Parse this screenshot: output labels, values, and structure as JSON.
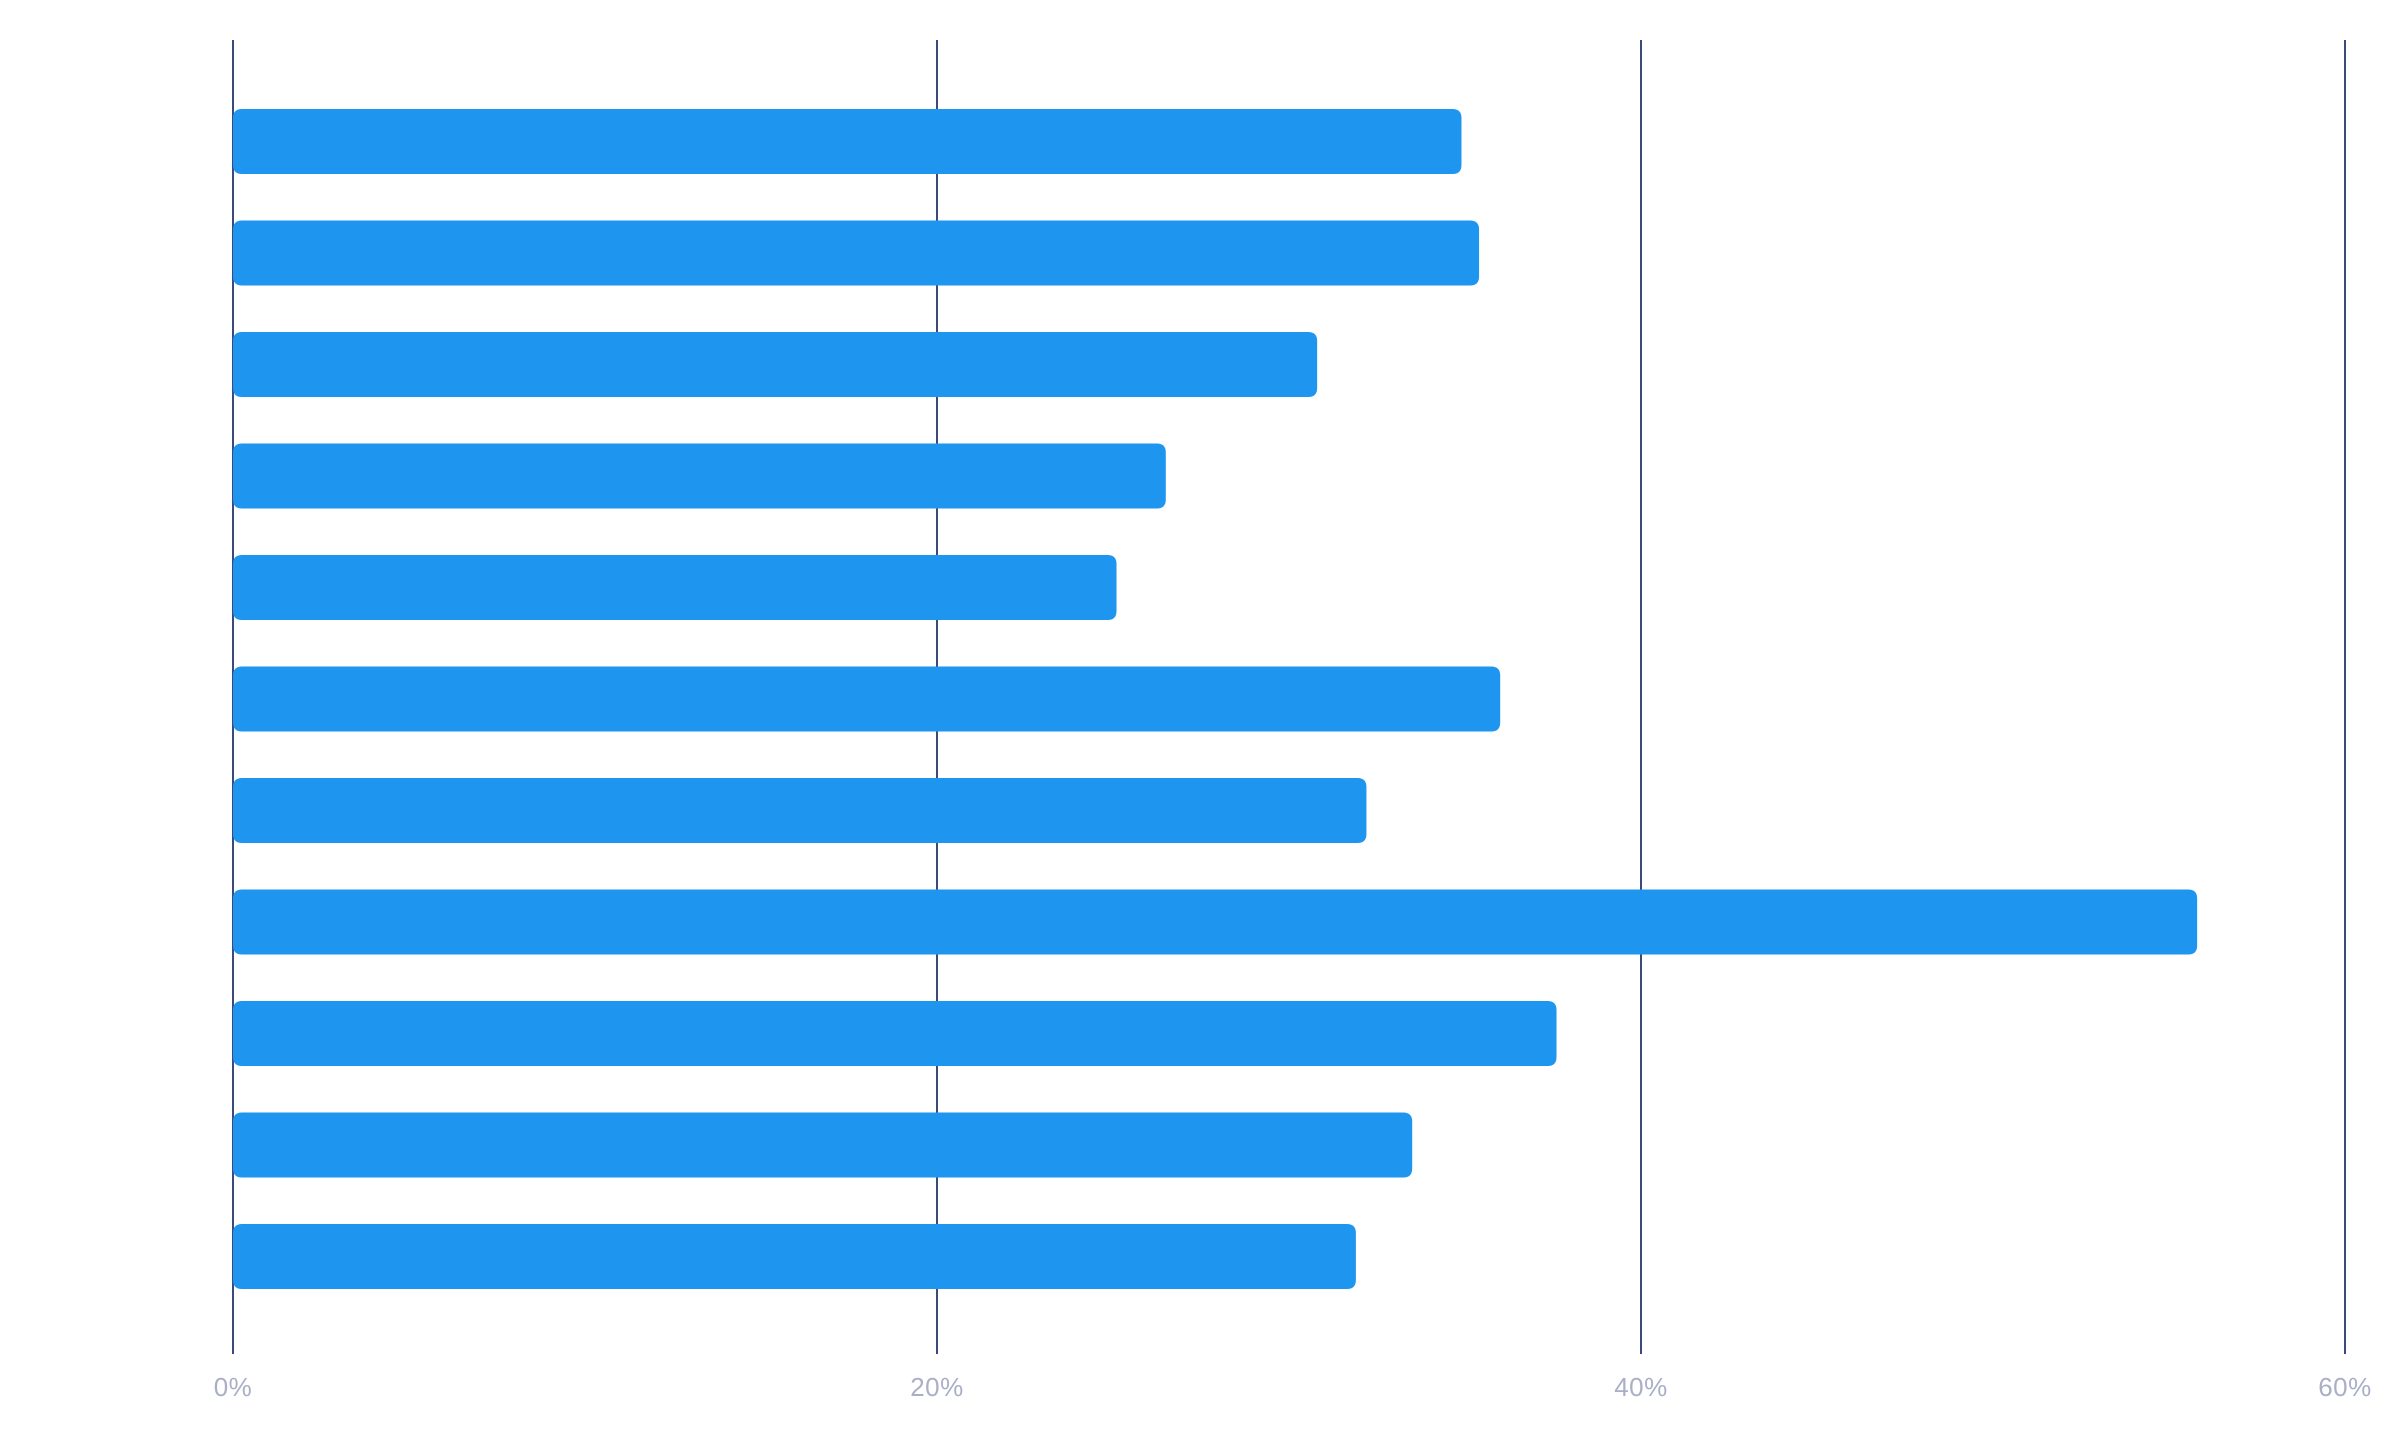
{
  "chart_data": {
    "type": "bar",
    "orientation": "horizontal",
    "title": "",
    "xlabel": "",
    "ylabel": "",
    "xlim": [
      0,
      60
    ],
    "x_ticks": [
      0,
      20,
      40,
      60
    ],
    "x_tick_labels": [
      "0%",
      "20%",
      "40%",
      "60%"
    ],
    "categories": [
      "",
      "",
      "",
      "",
      "",
      "",
      "",
      "",
      "",
      "",
      ""
    ],
    "values": [
      34.9,
      35.4,
      30.8,
      26.5,
      25.1,
      36.0,
      32.2,
      55.8,
      37.6,
      33.5,
      31.9
    ],
    "grid": "vertical",
    "legend": "none",
    "colors": {
      "bar": "#1e96f0",
      "gridline": "#3a4a7a",
      "tick_label": "#a9b0c6",
      "background": "#ffffff"
    }
  }
}
